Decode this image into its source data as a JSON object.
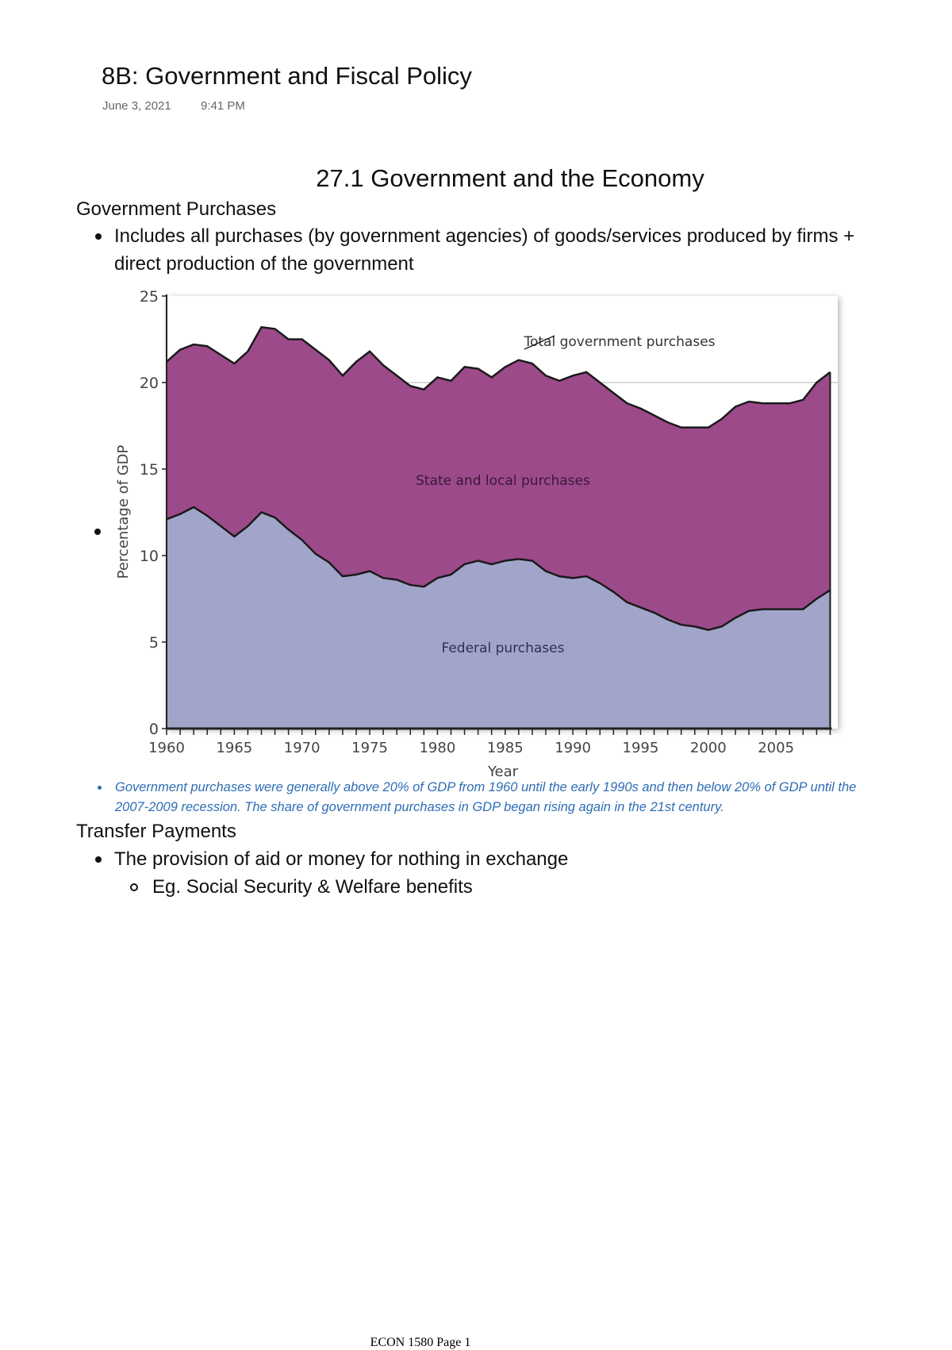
{
  "page": {
    "title": "8B: Government and Fiscal Policy",
    "date": "June 3, 2021",
    "time": "9:41 PM",
    "footer": "ECON 1580 Page 1"
  },
  "section": {
    "heading": "27.1 Government and the Economy",
    "gov_purchases": {
      "heading": "Government Purchases",
      "bullet_line1": "Includes all purchases (by government agencies) of goods/services produced by firms +",
      "bullet_line2": "direct production of the government"
    },
    "caption_line1": "Government purchases were generally above 20% of GDP from 1960 until the early 1990s and then below 20% of GDP until the",
    "caption_line2": "2007-2009 recession. The share of government purchases in GDP began rising again in the 21st century.",
    "transfer": {
      "heading": "Transfer Payments",
      "bullet": "The provision of aid or money for nothing in exchange",
      "sub_bullet": "Eg. Social Security & Welfare benefits"
    }
  },
  "chart_data": {
    "type": "area",
    "stacked": true,
    "xlabel": "Year",
    "ylabel": "Percentage of GDP",
    "xlim": [
      1960,
      2009
    ],
    "ylim": [
      0,
      25
    ],
    "xticks": [
      1960,
      1965,
      1970,
      1975,
      1980,
      1985,
      1990,
      1995,
      2000,
      2005
    ],
    "yticks": [
      0,
      5,
      10,
      15,
      20,
      25
    ],
    "gridlines": [
      20
    ],
    "x": [
      1960,
      1961,
      1962,
      1963,
      1964,
      1965,
      1966,
      1967,
      1968,
      1969,
      1970,
      1971,
      1972,
      1973,
      1974,
      1975,
      1976,
      1977,
      1978,
      1979,
      1980,
      1981,
      1982,
      1983,
      1984,
      1985,
      1986,
      1987,
      1988,
      1989,
      1990,
      1991,
      1992,
      1993,
      1994,
      1995,
      1996,
      1997,
      1998,
      1999,
      2000,
      2001,
      2002,
      2003,
      2004,
      2005,
      2006,
      2007,
      2008,
      2009
    ],
    "federal": [
      12.1,
      12.4,
      12.8,
      12.3,
      11.7,
      11.1,
      11.7,
      12.5,
      12.2,
      11.5,
      10.9,
      10.1,
      9.6,
      8.8,
      8.9,
      9.1,
      8.7,
      8.6,
      8.3,
      8.2,
      8.7,
      8.9,
      9.5,
      9.7,
      9.5,
      9.7,
      9.8,
      9.7,
      9.1,
      8.8,
      8.7,
      8.8,
      8.4,
      7.9,
      7.3,
      7.0,
      6.7,
      6.3,
      6.0,
      5.9,
      5.7,
      5.9,
      6.4,
      6.8,
      6.9,
      6.9,
      6.9,
      6.9,
      7.5,
      8.0
    ],
    "total": [
      21.2,
      21.9,
      22.2,
      22.1,
      21.6,
      21.1,
      21.8,
      23.2,
      23.1,
      22.5,
      22.5,
      21.9,
      21.3,
      20.4,
      21.2,
      21.8,
      21.0,
      20.4,
      19.8,
      19.6,
      20.3,
      20.1,
      20.9,
      20.8,
      20.3,
      20.9,
      21.3,
      21.1,
      20.4,
      20.1,
      20.4,
      20.6,
      20.0,
      19.4,
      18.8,
      18.5,
      18.1,
      17.7,
      17.4,
      17.4,
      17.4,
      17.9,
      18.6,
      18.9,
      18.8,
      18.8,
      18.8,
      19.0,
      20.0,
      20.6
    ],
    "labels": {
      "total": "Total government purchases",
      "state_local": "State and local purchases",
      "federal": "Federal purchases"
    },
    "colors": {
      "federal": "#a1a5c9",
      "state_local": "#9c4a8a",
      "line": "#1a1a1a",
      "grid": "#cccccc"
    }
  }
}
